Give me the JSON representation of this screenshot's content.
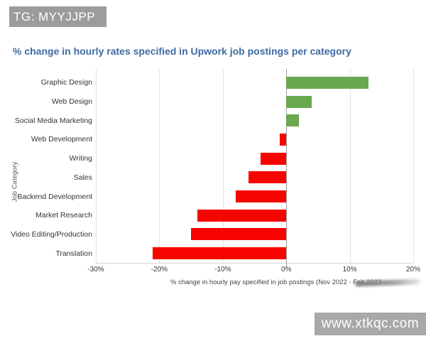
{
  "watermark_top_left": {
    "text": "TG: MYYJJPP"
  },
  "watermark_bottom_right": {
    "text": "www.xtkqc.com"
  },
  "chart_data": {
    "type": "bar",
    "orientation": "horizontal",
    "title": "% change in hourly rates specified in Upwork job postings per category",
    "xlabel": "% change in hourly pay specified in job postings (Nov 2022 - Feb 2023",
    "xlabel_obscured_by_smudge": true,
    "ylabel": "Job Category",
    "categories": [
      "Graphic Design",
      "Web Design",
      "Social Media Marketing",
      "Web Development",
      "Writing",
      "Sales",
      "Backend Development",
      "Market Research",
      "Video Editing/Production",
      "Translation"
    ],
    "values": [
      13,
      4,
      2,
      -1,
      -4,
      -6,
      -8,
      -14,
      -15,
      -21
    ],
    "xlim": [
      -30,
      20
    ],
    "xticks": [
      {
        "value": -30,
        "label": "-30%"
      },
      {
        "value": -20,
        "label": "-20%"
      },
      {
        "value": -10,
        "label": "-10%"
      },
      {
        "value": 0,
        "label": "0%"
      },
      {
        "value": 10,
        "label": "10%"
      },
      {
        "value": 20,
        "label": "20%"
      }
    ],
    "grid": "vertical-only",
    "legend": "none",
    "colors": {
      "positive_bar": "#6aa84f",
      "negative_bar": "#f80400",
      "gridline": "#e3e3e3",
      "zero_line": "#9e9e9e",
      "title_text": "#3d6ba3",
      "axis_text": "#333333",
      "watermark_bg": "#9c9c9c",
      "watermark_text": "#ffffff"
    }
  }
}
